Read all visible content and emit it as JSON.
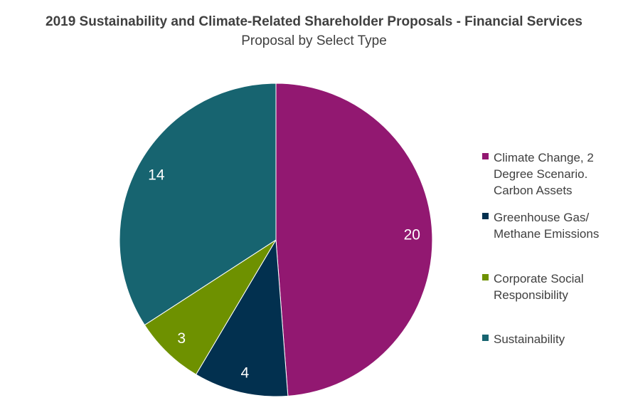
{
  "chart_data": {
    "type": "pie",
    "title": "2019 Sustainability and Climate-Related Shareholder Proposals - Financial Services",
    "subtitle": "Proposal by Select Type",
    "categories": [
      "Climate Change, 2\nDegree Scenario.\nCarbon Assets",
      "Greenhouse Gas/\nMethane Emissions",
      "Corporate Social\nResponsibility",
      "Sustainability"
    ],
    "values": [
      20,
      4,
      3,
      14
    ],
    "colors": [
      "#921871",
      "#02304f",
      "#6e9100",
      "#176470"
    ],
    "data_labels": [
      "20",
      "4",
      "3",
      "14"
    ],
    "legend_placement": "right"
  }
}
